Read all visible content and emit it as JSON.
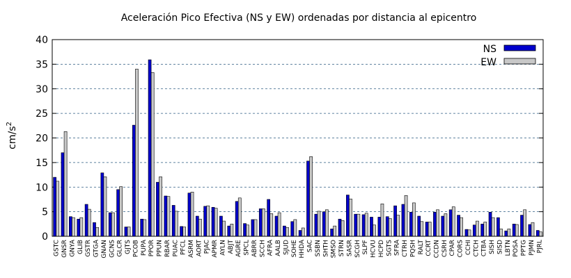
{
  "chart_data": {
    "type": "bar",
    "title": "Aceleración Pico Efectiva (NS y EW) ordenadas por distancia al epicentro",
    "xlabel": "",
    "ylabel": "cm/s",
    "ylabel_sup": "2",
    "ylim": [
      0,
      40
    ],
    "yticks": [
      0,
      5,
      10,
      15,
      20,
      25,
      30,
      35,
      40
    ],
    "grid": "horizontal dashed",
    "legend_position": "top-right",
    "colors": {
      "NS": "#0000cc",
      "EW": "#c8c8c8",
      "grid": "#2a5a80"
    },
    "categories": [
      "GSTC",
      "GNSR",
      "GNYA",
      "GLIB",
      "GSTR",
      "GTGA",
      "GNAN",
      "GCNS",
      "GLCR",
      "GJTS",
      "PCOB",
      "PUPA",
      "PPOR",
      "PPUN",
      "RBAR",
      "PUAC",
      "PFCL",
      "ASRM",
      "AORT",
      "PJAC",
      "APMR",
      "AYLN",
      "ABJT",
      "AGRE",
      "SPCL",
      "ABRR",
      "SCCH",
      "AFRA",
      "AALB",
      "SJUD",
      "SOHE",
      "HHDA",
      "SAC",
      "SSBN",
      "SHTH",
      "SMSO",
      "STRN",
      "SASR",
      "SCGH",
      "SLPF",
      "HCVU",
      "HCPD",
      "SGTS",
      "SFRA",
      "CTRH",
      "PQSH",
      "RALT",
      "CCRT",
      "CCDN",
      "CSRH",
      "CPAR",
      "CORS",
      "CCHI",
      "CTCH",
      "CTBA",
      "SISH",
      "SISD",
      "LBTN",
      "POSA",
      "PPTG",
      "PJMN",
      "PJRL"
    ],
    "series": [
      {
        "name": "NS",
        "values": [
          12.0,
          17.0,
          4.0,
          3.5,
          6.5,
          2.8,
          12.9,
          4.8,
          9.5,
          1.9,
          22.6,
          3.5,
          35.9,
          11.0,
          8.2,
          6.3,
          2.0,
          8.8,
          4.1,
          6.1,
          5.9,
          4.1,
          2.1,
          7.1,
          2.6,
          3.4,
          5.6,
          7.5,
          4.1,
          2.1,
          3.0,
          1.2,
          15.3,
          4.5,
          5.0,
          1.5,
          3.5,
          8.4,
          4.5,
          4.4,
          3.9,
          3.9,
          4.0,
          6.2,
          6.5,
          4.9,
          4.1,
          2.9,
          4.9,
          4.1,
          5.4,
          4.3,
          1.4,
          2.3,
          2.5,
          4.9,
          3.8,
          1.1,
          2.5,
          4.3,
          2.4,
          1.2
        ]
      },
      {
        "name": "EW",
        "values": [
          11.2,
          21.3,
          3.8,
          3.8,
          5.5,
          1.8,
          12.1,
          4.8,
          10.1,
          1.9,
          34.0,
          3.4,
          33.3,
          12.1,
          8.1,
          5.1,
          1.9,
          9.0,
          3.5,
          6.2,
          5.7,
          3.1,
          2.5,
          7.8,
          2.3,
          3.4,
          5.6,
          4.6,
          4.8,
          1.8,
          3.4,
          1.7,
          16.2,
          5.1,
          5.4,
          2.1,
          3.2,
          7.6,
          4.5,
          4.7,
          2.3,
          6.6,
          3.6,
          4.3,
          8.3,
          6.8,
          3.0,
          2.9,
          5.4,
          4.6,
          6.0,
          3.8,
          1.3,
          3.1,
          2.9,
          3.8,
          1.5,
          1.5,
          2.4,
          5.4,
          2.8,
          0.9
        ]
      }
    ]
  }
}
